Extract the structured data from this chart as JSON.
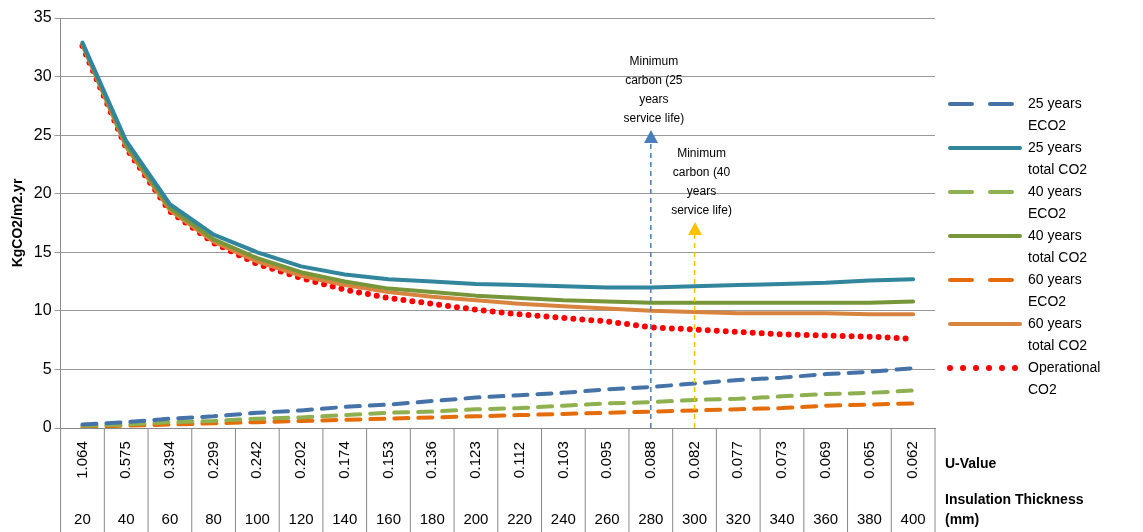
{
  "chart_data": {
    "type": "line",
    "ylabel": "KgCO2/m2.yr",
    "xlabel": "Insulation Thickness (mm)",
    "categories": [
      "1.064\n20",
      "0.575\n40",
      "0.394\n60",
      "0.299\n80",
      "0.242\n100",
      "0.202\n120",
      "0.174\n140",
      "0.153\n160",
      "0.136\n180",
      "0.123\n200",
      "0.112\n220",
      "0.103\n240",
      "0.095\n260",
      "0.088\n280",
      "0.082\n300",
      "0.077\n320",
      "0.073\n340",
      "0.069\n360",
      "0.065\n380",
      "0.062\n400"
    ],
    "ylim": [
      0,
      35
    ],
    "yticks": [
      0,
      5,
      10,
      15,
      20,
      25,
      30,
      35
    ],
    "grid": "y",
    "legend": "right",
    "marker": "none",
    "series": [
      {
        "name": "25 years ECO2",
        "color": "#4572a7",
        "line_style": "dashed",
        "values": [
          0.3,
          0.5,
          0.8,
          1.0,
          1.3,
          1.5,
          1.8,
          2.0,
          2.3,
          2.6,
          2.8,
          3.0,
          3.3,
          3.5,
          3.8,
          4.1,
          4.3,
          4.6,
          4.8,
          5.1
        ]
      },
      {
        "name": "25 years total CO2",
        "color": "#31859c",
        "line_style": "solid",
        "values": [
          32.9,
          24.5,
          19.1,
          16.5,
          15.0,
          13.8,
          13.1,
          12.7,
          12.5,
          12.3,
          12.2,
          12.1,
          12.0,
          12.0,
          12.1,
          12.2,
          12.3,
          12.4,
          12.6,
          12.7
        ]
      },
      {
        "name": "40 years ECO2",
        "color": "#8eb050",
        "line_style": "dashed",
        "values": [
          0.2,
          0.3,
          0.5,
          0.6,
          0.8,
          0.9,
          1.1,
          1.3,
          1.4,
          1.6,
          1.7,
          1.9,
          2.1,
          2.2,
          2.4,
          2.5,
          2.7,
          2.9,
          3.0,
          3.2
        ]
      },
      {
        "name": "40 years total CO2",
        "color": "#77963a",
        "line_style": "solid",
        "values": [
          32.8,
          24.2,
          18.8,
          16.1,
          14.5,
          13.3,
          12.5,
          11.9,
          11.6,
          11.3,
          11.1,
          10.9,
          10.8,
          10.7,
          10.7,
          10.7,
          10.7,
          10.7,
          10.7,
          10.8
        ]
      },
      {
        "name": "60 years ECO2",
        "color": "#e46c0a",
        "line_style": "dashed",
        "values": [
          0.1,
          0.2,
          0.3,
          0.4,
          0.5,
          0.6,
          0.7,
          0.8,
          0.9,
          1.0,
          1.1,
          1.2,
          1.3,
          1.4,
          1.5,
          1.6,
          1.7,
          1.9,
          2.0,
          2.1
        ]
      },
      {
        "name": "60 years total CO2",
        "color": "#d9843e",
        "line_style": "solid",
        "values": [
          32.7,
          24.0,
          18.6,
          15.9,
          14.2,
          13.0,
          12.2,
          11.6,
          11.2,
          10.9,
          10.6,
          10.4,
          10.2,
          10.0,
          9.9,
          9.8,
          9.8,
          9.8,
          9.7,
          9.7
        ]
      },
      {
        "name": "Operational CO2",
        "color": "#ff0000",
        "line_style": "dotted",
        "values": [
          32.6,
          23.9,
          18.5,
          15.8,
          14.0,
          12.8,
          11.8,
          11.1,
          10.6,
          10.1,
          9.7,
          9.4,
          9.1,
          8.6,
          8.4,
          8.2,
          8.0,
          7.9,
          7.8,
          7.6
        ]
      }
    ],
    "ref_lines": [
      {
        "axis": "x",
        "value": "0.088\n280",
        "label": "Minimum carbon (25 years service life)",
        "color": "#4a7ebb",
        "line_style": "dashed"
      },
      {
        "axis": "x",
        "value": "0.082\n300",
        "label": "Minimum carbon (40 years service life)",
        "color": "#ffc000",
        "line_style": "dashed"
      }
    ],
    "annotations": [
      "U-Value"
    ]
  }
}
